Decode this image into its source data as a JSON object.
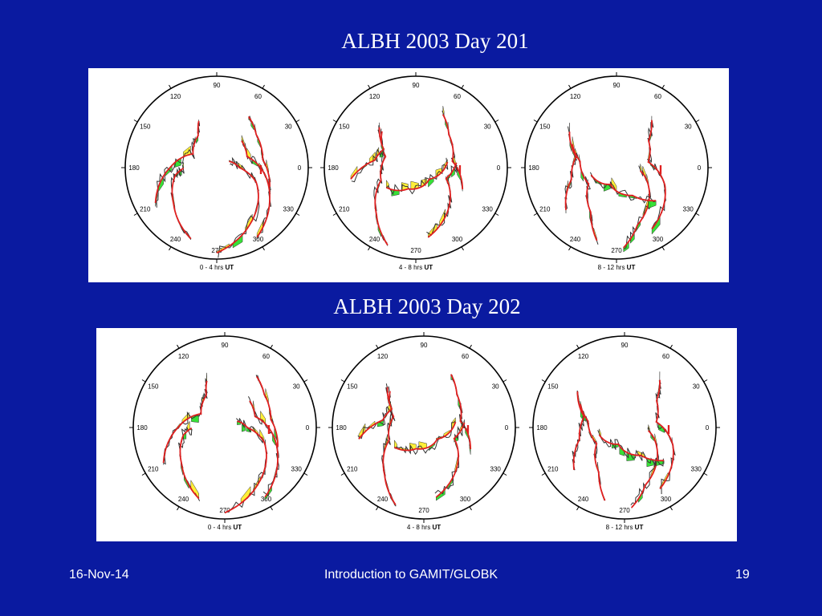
{
  "slide": {
    "title_day201": "ALBH 2003 Day 201",
    "title_day202": "ALBH 2003 Day 202"
  },
  "skyplot": {
    "azimuth_labels": [
      "90",
      "60",
      "30",
      "0",
      "330",
      "300",
      "270",
      "240",
      "210",
      "180",
      "150",
      "120"
    ],
    "receiver_marker": "I",
    "windows": [
      "0 - 4 hrs",
      "4 - 8 hrs",
      "8 - 12 hrs"
    ],
    "unit": "UT"
  },
  "colors": {
    "background": "#0a1aa0",
    "track": "#e02020",
    "residual_positive": "#ffee22",
    "residual_negative": "#22dd22",
    "residual_trace": "#333333"
  },
  "footer": {
    "date": "16-Nov-14",
    "center": "Introduction to GAMIT/GLOBK",
    "page": "19"
  }
}
